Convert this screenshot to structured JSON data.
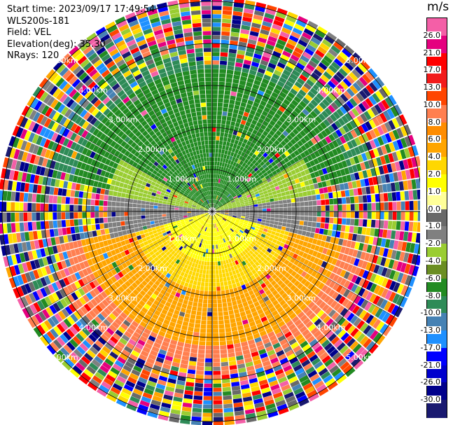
{
  "info": {
    "start_time": "Start time: 2023/09/17 17:49:54",
    "instrument": "WLS200s-181",
    "field": "Field: VEL",
    "elevation": "Elevation(deg): 35.30",
    "nrays": "NRays: 120"
  },
  "colorbar": {
    "unit": "m/s",
    "ticks": [
      "26.0",
      "21.0",
      "17.0",
      "13.0",
      "10.0",
      "8.0",
      "6.0",
      "4.0",
      "2.0",
      "1.0",
      "0.0",
      "-1.0",
      "-2.0",
      "-4.0",
      "-6.0",
      "-8.0",
      "-10.0",
      "-13.0",
      "-17.0",
      "-21.0",
      "-26.0",
      "-30.0"
    ],
    "colors": [
      "#f45fa7",
      "#e5007f",
      "#ff0000",
      "#f21b1b",
      "#ff4500",
      "#ff7f50",
      "#ff8c00",
      "#ffa500",
      "#ffd700",
      "#ffff00",
      "#ffff99",
      "#696969",
      "#808080",
      "#9acd32",
      "#6b8e23",
      "#228b22",
      "#2e8b57",
      "#4682b4",
      "#1e90ff",
      "#0000ff",
      "#0000cd",
      "#00008b",
      "#191970"
    ]
  },
  "range_labels": [
    "1.00km",
    "2.00km",
    "3.00km",
    "4.00km",
    "5.00km"
  ]
}
